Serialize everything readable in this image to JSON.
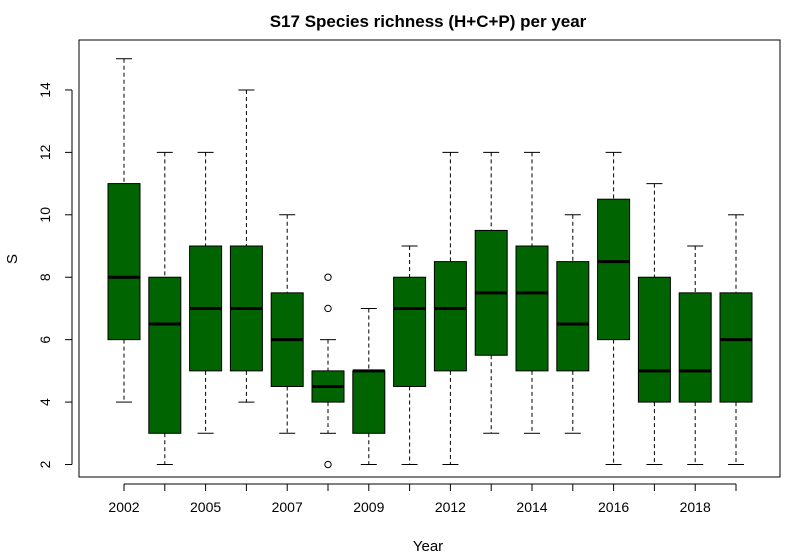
{
  "chart_data": {
    "type": "boxplot",
    "title": "S17 Species richness (H+C+P) per year",
    "xlabel": "Year",
    "ylabel": "S",
    "ylim": [
      1.6,
      15.6
    ],
    "y_ticks": [
      2,
      4,
      6,
      8,
      10,
      12,
      14
    ],
    "x_tick_labels": [
      {
        "index": 0,
        "label": "2002"
      },
      {
        "index": 2,
        "label": "2005"
      },
      {
        "index": 4,
        "label": "2007"
      },
      {
        "index": 6,
        "label": "2009"
      },
      {
        "index": 8,
        "label": "2012"
      },
      {
        "index": 10,
        "label": "2014"
      },
      {
        "index": 12,
        "label": "2016"
      },
      {
        "index": 14,
        "label": "2018"
      }
    ],
    "box_color": "#006400",
    "grid": false,
    "boxes": [
      {
        "min": 4,
        "q1": 6,
        "median": 8,
        "q3": 11,
        "max": 15,
        "outliers": []
      },
      {
        "min": 2,
        "q1": 3,
        "median": 6.5,
        "q3": 8,
        "max": 12,
        "outliers": []
      },
      {
        "min": 3,
        "q1": 5,
        "median": 7,
        "q3": 9,
        "max": 12,
        "outliers": []
      },
      {
        "min": 4,
        "q1": 5,
        "median": 7,
        "q3": 9,
        "max": 14,
        "outliers": []
      },
      {
        "min": 3,
        "q1": 4.5,
        "median": 6,
        "q3": 7.5,
        "max": 10,
        "outliers": []
      },
      {
        "min": 3,
        "q1": 4,
        "median": 4.5,
        "q3": 5,
        "max": 6,
        "outliers": [
          2,
          7,
          8
        ]
      },
      {
        "min": 2,
        "q1": 3,
        "median": 5,
        "q3": 5,
        "max": 7,
        "outliers": []
      },
      {
        "min": 2,
        "q1": 4.5,
        "median": 7,
        "q3": 8,
        "max": 9,
        "outliers": []
      },
      {
        "min": 2,
        "q1": 5,
        "median": 7,
        "q3": 8.5,
        "max": 12,
        "outliers": []
      },
      {
        "min": 3,
        "q1": 5.5,
        "median": 7.5,
        "q3": 9.5,
        "max": 12,
        "outliers": []
      },
      {
        "min": 3,
        "q1": 5,
        "median": 7.5,
        "q3": 9,
        "max": 12,
        "outliers": []
      },
      {
        "min": 3,
        "q1": 5,
        "median": 6.5,
        "q3": 8.5,
        "max": 10,
        "outliers": []
      },
      {
        "min": 2,
        "q1": 6,
        "median": 8.5,
        "q3": 10.5,
        "max": 12,
        "outliers": []
      },
      {
        "min": 2,
        "q1": 4,
        "median": 5,
        "q3": 8,
        "max": 11,
        "outliers": []
      },
      {
        "min": 2,
        "q1": 4,
        "median": 5,
        "q3": 7.5,
        "max": 9,
        "outliers": []
      },
      {
        "min": 2,
        "q1": 4,
        "median": 6,
        "q3": 7.5,
        "max": 10,
        "outliers": []
      }
    ]
  }
}
